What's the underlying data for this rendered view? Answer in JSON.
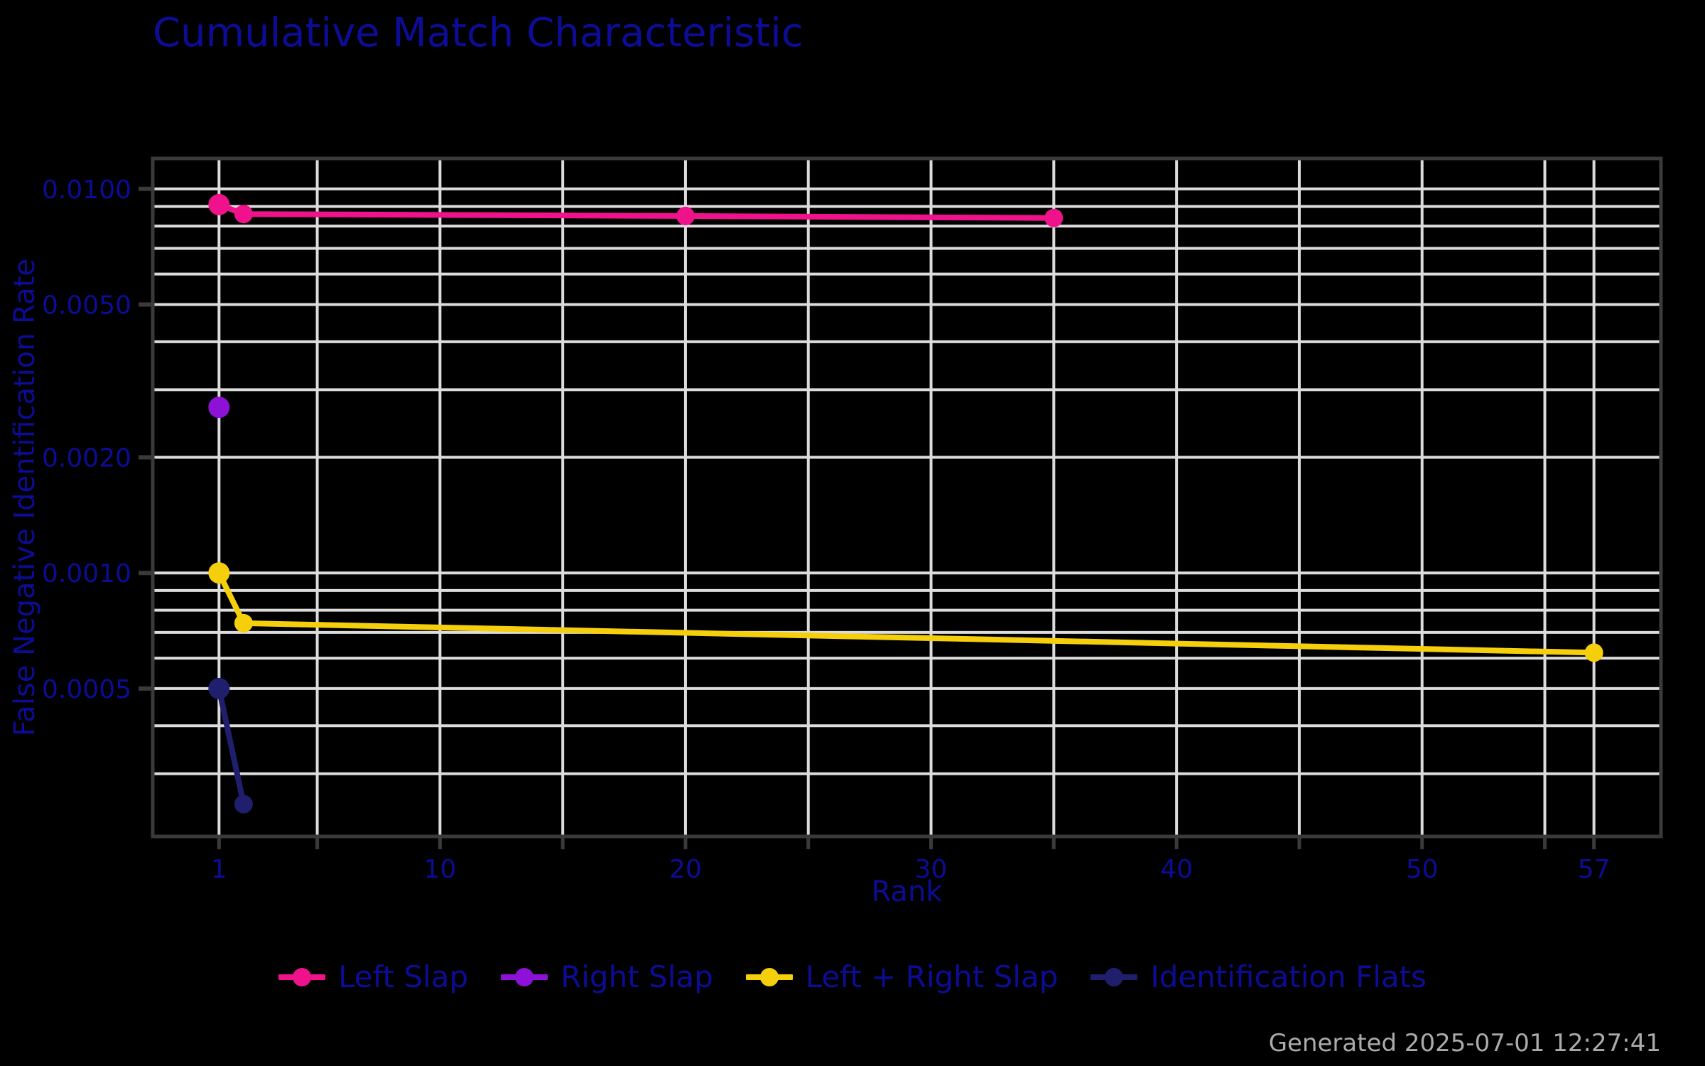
{
  "chart_data": {
    "type": "line",
    "title": "Cumulative Match Characteristic",
    "xlabel": "Rank",
    "ylabel": "False Negative Identification Rate",
    "x_scale": "linear",
    "y_scale": "log",
    "grid": true,
    "legend_position": "bottom-center",
    "x_tick_labels": [
      1,
      10,
      20,
      30,
      40,
      50,
      57
    ],
    "x_gridlines": [
      1,
      5,
      10,
      15,
      20,
      25,
      30,
      35,
      40,
      45,
      50,
      55,
      57
    ],
    "y_ticks": [
      {
        "value": 0.01,
        "label": "0.0100"
      },
      {
        "value": 0.005,
        "label": "0.0050"
      },
      {
        "value": 0.002,
        "label": "0.0020"
      },
      {
        "value": 0.001,
        "label": "0.0010"
      },
      {
        "value": 0.0005,
        "label": "0.0005"
      }
    ],
    "y_gridlines": [
      0.01,
      0.009,
      0.008,
      0.007,
      0.006,
      0.005,
      0.004,
      0.003,
      0.002,
      0.001,
      0.0009,
      0.0008,
      0.0007,
      0.0006,
      0.0005,
      0.0004,
      0.0003
    ],
    "x_range_approx": [
      -1.7,
      59.73
    ],
    "y_range_approx": [
      0.000206,
      0.012
    ],
    "series": [
      {
        "name": "Left Slap",
        "color": "#F0128B",
        "points": [
          [
            1,
            0.0091
          ],
          [
            2,
            0.0086
          ],
          [
            20,
            0.0085
          ],
          [
            35,
            0.0084
          ]
        ]
      },
      {
        "name": "Right Slap",
        "color": "#8E11D8",
        "points": [
          [
            1,
            0.0027
          ]
        ]
      },
      {
        "name": "Left + Right Slap",
        "color": "#F5CE0C",
        "points": [
          [
            1,
            0.001
          ],
          [
            2,
            0.00074
          ],
          [
            57,
            0.00062
          ]
        ]
      },
      {
        "name": "Identification Flats",
        "color": "#1F1F6E",
        "points": [
          [
            1,
            0.0005
          ],
          [
            2,
            0.00025
          ]
        ]
      }
    ]
  },
  "footer": {
    "generated_text": "Generated 2025-07-01 12:27:41"
  },
  "theme": {
    "background": "#000000",
    "text_color": "#0C0C96",
    "grid_color": "#DCDCDC",
    "spine_color": "#3A3A3A",
    "tick_color": "#3A3A3A",
    "footer_color": "#ABABAB"
  }
}
